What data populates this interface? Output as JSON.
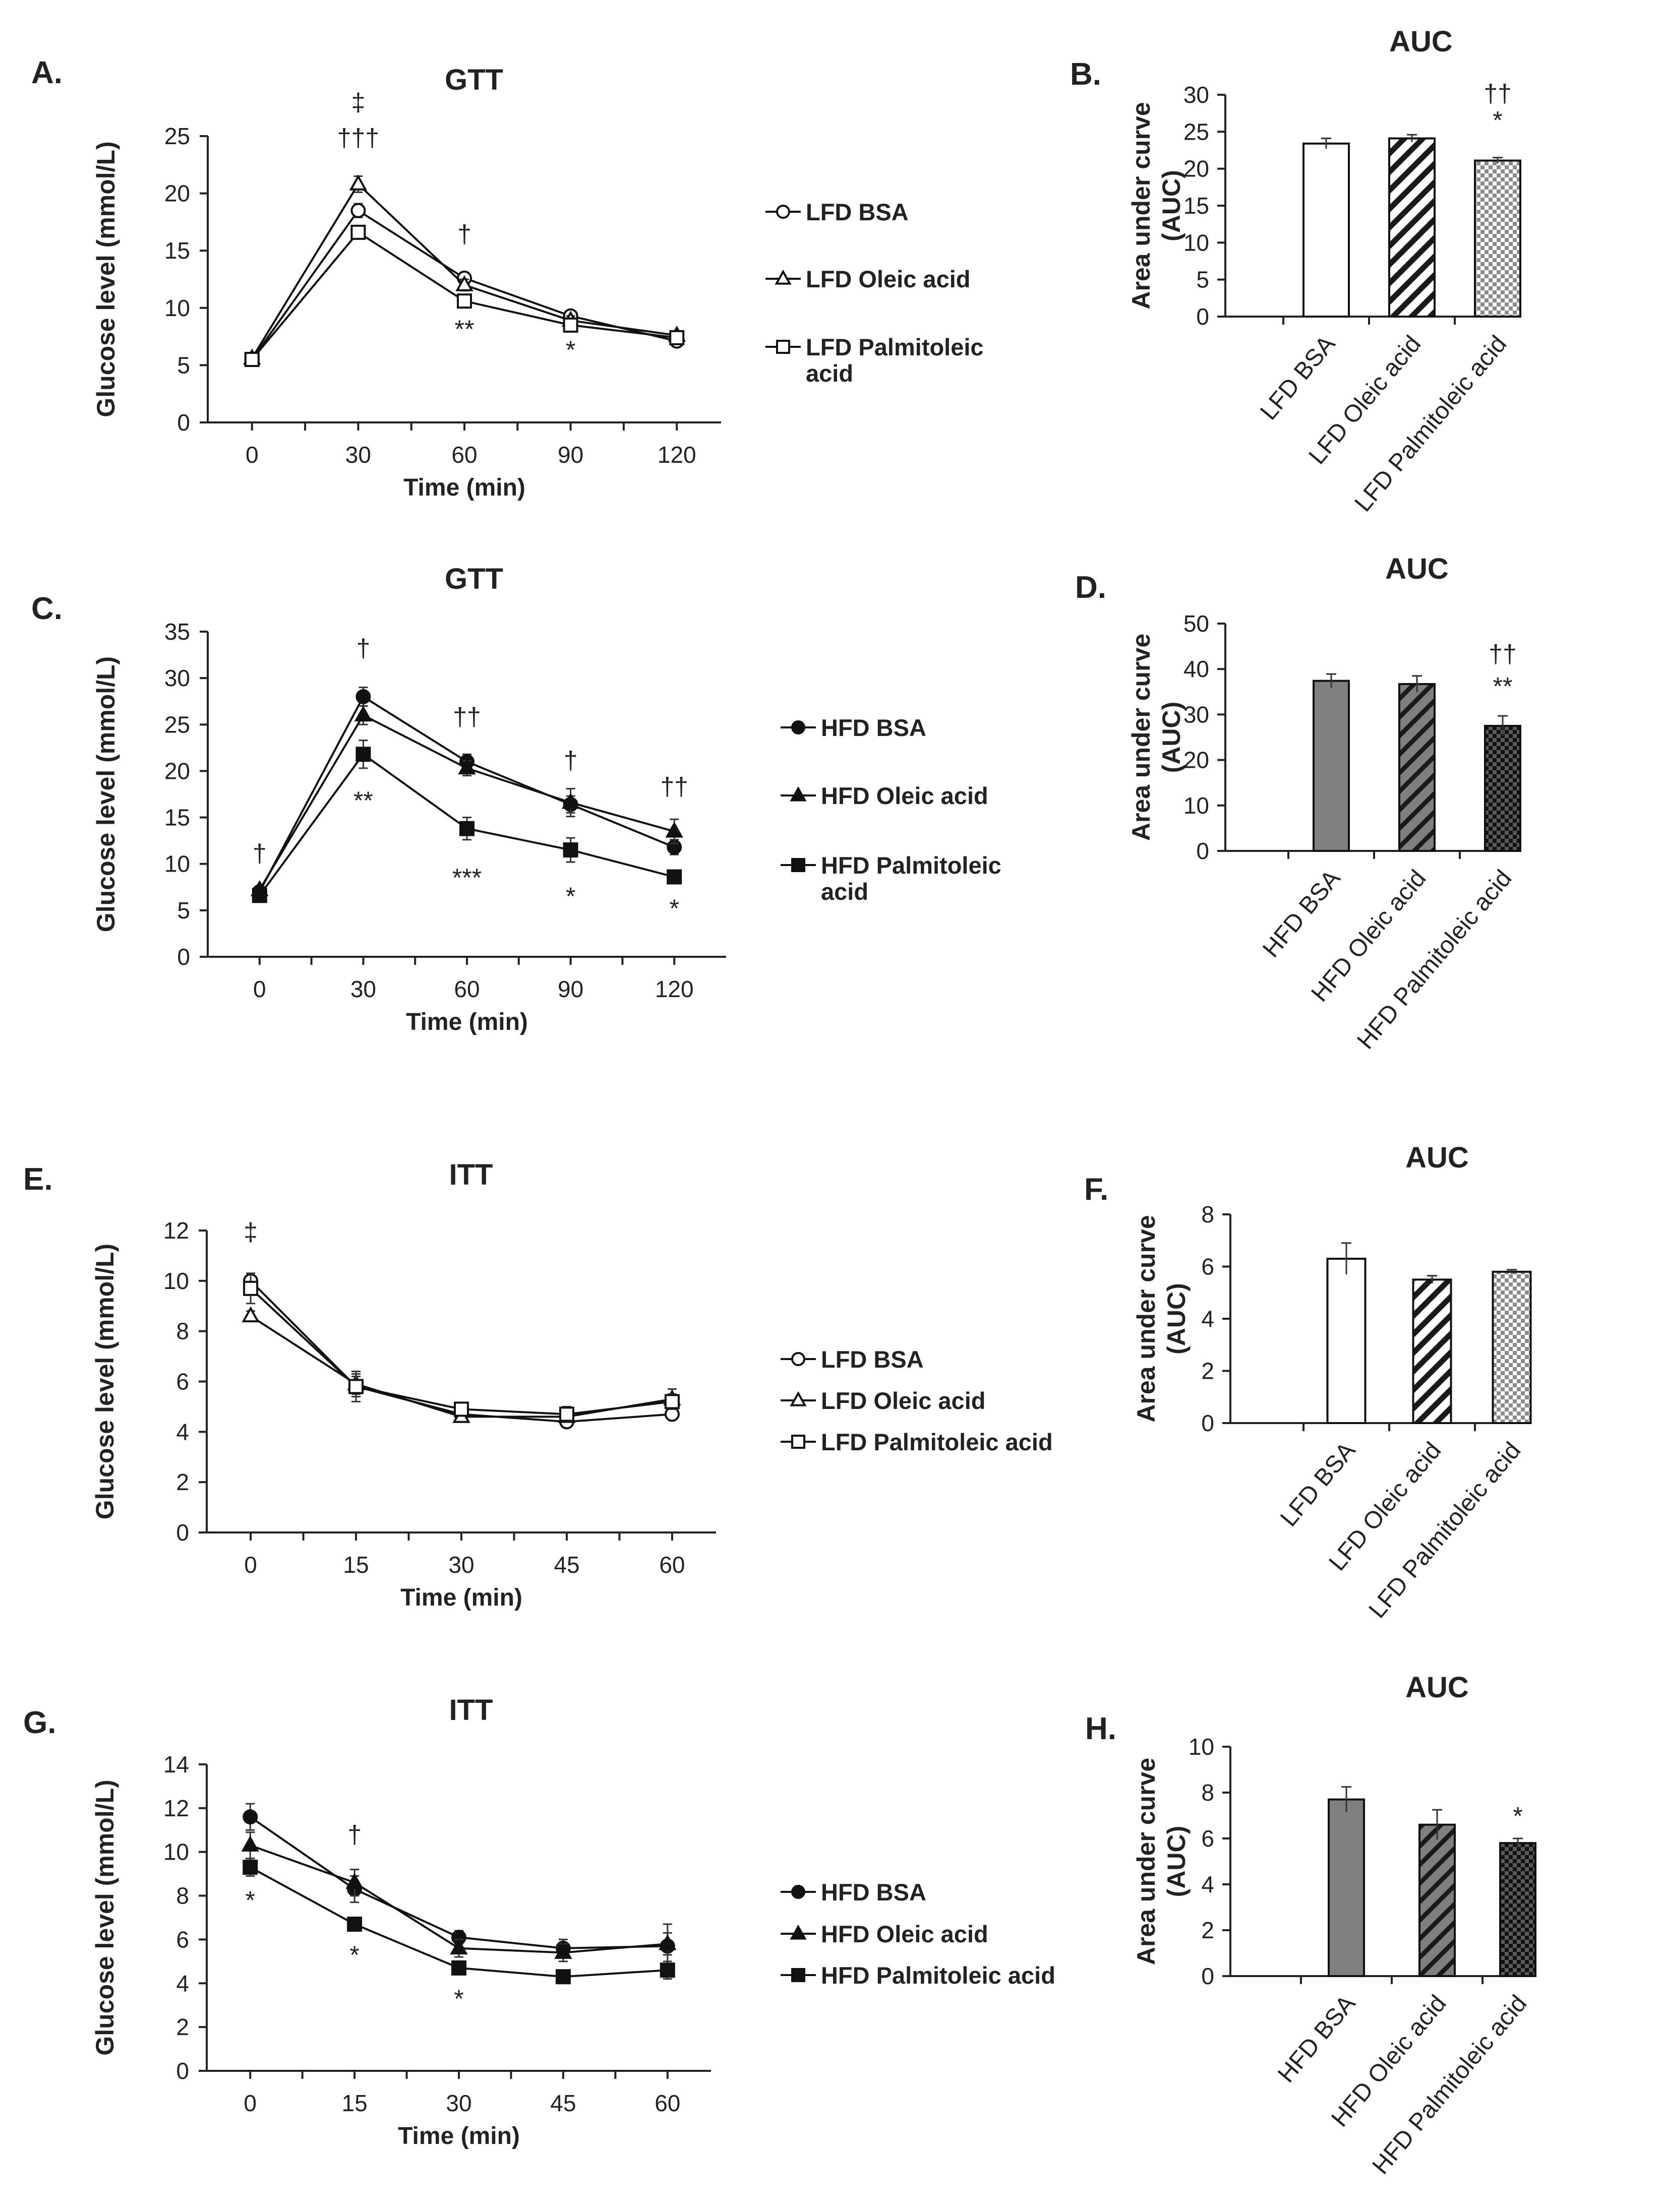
{
  "figure_caption_note": "",
  "chart_data": [
    {
      "panel": "A.",
      "type": "line",
      "title": "GTT",
      "xlabel": "Time (min)",
      "ylabel": "Glucose level (mmol/L)",
      "x": [
        0,
        30,
        60,
        90,
        120
      ],
      "xticks": [
        "0",
        "30",
        "60",
        "90",
        "120"
      ],
      "xlim": [
        -12.5,
        132.5
      ],
      "ylim": [
        0,
        25
      ],
      "yticks": [
        0,
        5,
        10,
        15,
        20,
        25
      ],
      "series": [
        {
          "name": "LFD BSA",
          "marker": "circle-open",
          "values": [
            5.5,
            18.5,
            12.6,
            9.3,
            7.1
          ],
          "errors": [
            0.2,
            0.6,
            0.5,
            0.4,
            0.3
          ]
        },
        {
          "name": "LFD Oleic acid",
          "marker": "triangle-open",
          "values": [
            5.6,
            20.8,
            12.0,
            8.9,
            7.6
          ],
          "errors": [
            0.2,
            0.7,
            0.5,
            0.4,
            0.3
          ]
        },
        {
          "name": "LFD Palmitoleic acid",
          "marker": "square-open",
          "values": [
            5.5,
            16.6,
            10.6,
            8.5,
            7.4
          ],
          "errors": [
            0.2,
            0.5,
            0.4,
            0.3,
            0.3
          ]
        }
      ],
      "legend": [
        "LFD BSA",
        "LFD Oleic acid",
        "LFD Palmitoleic\nacid"
      ],
      "annotations": [
        {
          "text": "‡",
          "x": 30,
          "y": 27.2
        },
        {
          "text": "†††",
          "x": 30,
          "y": 24.1
        },
        {
          "text": "†",
          "x": 60,
          "y": 15.7
        },
        {
          "text": "**",
          "x": 60,
          "y": 7.4
        },
        {
          "text": "*",
          "x": 90,
          "y": 5.6
        }
      ]
    },
    {
      "panel": "B.",
      "type": "bar",
      "title": "AUC",
      "ylabel": "Area under curve\n(AUC)",
      "categories": [
        "LFD BSA",
        "LFD Oleic acid",
        "LFD Palmitoleic acid"
      ],
      "values": [
        23.4,
        24.1,
        21.1
      ],
      "errors": [
        0.7,
        0.5,
        0.4
      ],
      "patterns": [
        "white",
        "hatch-white",
        "check-white"
      ],
      "ylim": [
        0,
        30
      ],
      "yticks": [
        0,
        5,
        10,
        15,
        20,
        25,
        30
      ],
      "annotations": [
        {
          "text": "††",
          "bar": 2,
          "y": 29.0
        },
        {
          "text": "*",
          "bar": 2,
          "y": 25.4
        }
      ]
    },
    {
      "panel": "C.",
      "type": "line",
      "title": "GTT",
      "xlabel": "Time (min)",
      "ylabel": "Glucose level (mmol/L)",
      "x": [
        0,
        30,
        60,
        90,
        120
      ],
      "xticks": [
        "0",
        "30",
        "60",
        "90",
        "120"
      ],
      "xlim": [
        -15,
        135
      ],
      "ylim": [
        0,
        35
      ],
      "yticks": [
        0,
        5,
        10,
        15,
        20,
        25,
        30,
        35
      ],
      "series": [
        {
          "name": "HFD BSA",
          "marker": "circle-filled",
          "values": [
            7.0,
            28.0,
            21.0,
            16.4,
            11.8
          ],
          "errors": [
            0.3,
            1.0,
            0.8,
            0.9,
            0.8
          ]
        },
        {
          "name": "HFD Oleic acid",
          "marker": "triangle-filled",
          "values": [
            7.2,
            26.0,
            20.3,
            16.6,
            13.5
          ],
          "errors": [
            0.3,
            1.0,
            0.8,
            1.5,
            1.3
          ]
        },
        {
          "name": "HFD Palmitoleic acid",
          "marker": "square-filled",
          "values": [
            6.6,
            21.8,
            13.8,
            11.5,
            8.6
          ],
          "errors": [
            0.4,
            1.5,
            1.2,
            1.3,
            0.6
          ]
        }
      ],
      "legend": [
        "HFD BSA",
        "HFD Oleic acid",
        "HFD Palmitoleic\nacid"
      ],
      "annotations": [
        {
          "text": "†",
          "x": 0,
          "y": 10.2
        },
        {
          "text": "†",
          "x": 30,
          "y": 32.3
        },
        {
          "text": "**",
          "x": 30,
          "y": 15.9
        },
        {
          "text": "††",
          "x": 60,
          "y": 24.9
        },
        {
          "text": "***",
          "x": 60,
          "y": 7.6
        },
        {
          "text": "†",
          "x": 90,
          "y": 20.2
        },
        {
          "text": "*",
          "x": 90,
          "y": 5.6
        },
        {
          "text": "††",
          "x": 120,
          "y": 17.4
        },
        {
          "text": "*",
          "x": 120,
          "y": 4.3
        }
      ]
    },
    {
      "panel": "D.",
      "type": "bar",
      "title": "AUC",
      "ylabel": "Area under curve\n(AUC)",
      "categories": [
        "HFD BSA",
        "HFD Oleic acid",
        "HFD Palmitoleic acid"
      ],
      "values": [
        37.4,
        36.7,
        27.5
      ],
      "errors": [
        1.5,
        1.8,
        2.2
      ],
      "patterns": [
        "gray",
        "hatch-gray",
        "check-gray"
      ],
      "ylim": [
        0,
        50
      ],
      "yticks": [
        0,
        10,
        20,
        30,
        40,
        50
      ],
      "annotations": [
        {
          "text": "††",
          "bar": 2,
          "y": 41.4
        },
        {
          "text": "**",
          "bar": 2,
          "y": 34.3
        }
      ]
    },
    {
      "panel": "E.",
      "type": "line",
      "title": "ITT",
      "xlabel": "Time (min)",
      "ylabel": "Glucose level (mmol/L)",
      "x": [
        0,
        15,
        30,
        45,
        60
      ],
      "xticks": [
        "0",
        "15",
        "30",
        "45",
        "60"
      ],
      "xlim": [
        -6.25,
        66.25
      ],
      "ylim": [
        0,
        12
      ],
      "yticks": [
        0,
        2,
        4,
        6,
        8,
        10,
        12
      ],
      "series": [
        {
          "name": "LFD BSA",
          "marker": "circle-open",
          "values": [
            10.0,
            5.8,
            4.7,
            4.4,
            4.7
          ],
          "errors": [
            0.3,
            0.6,
            0.2,
            0.2,
            0.2
          ]
        },
        {
          "name": "LFD Oleic acid",
          "marker": "triangle-open",
          "values": [
            8.6,
            5.9,
            4.6,
            4.6,
            5.3
          ],
          "errors": [
            0.2,
            0.4,
            0.2,
            0.2,
            0.4
          ]
        },
        {
          "name": "LFD Palmitoleic acid",
          "marker": "square-open",
          "values": [
            9.7,
            5.8,
            4.9,
            4.7,
            5.2
          ],
          "errors": [
            0.6,
            0.4,
            0.2,
            0.3,
            0.3
          ]
        }
      ],
      "legend": [
        "LFD BSA",
        "LFD Oleic acid",
        "LFD Palmitoleic acid"
      ],
      "annotations": [
        {
          "text": "‡",
          "x": 0,
          "y": 11.6
        }
      ]
    },
    {
      "panel": "F.",
      "type": "bar",
      "title": "AUC",
      "ylabel": "Area under curve\n(AUC)",
      "categories": [
        "LFD BSA",
        "LFD Oleic acid",
        "LFD Palmitoleic acid"
      ],
      "values": [
        6.3,
        5.5,
        5.8
      ],
      "errors": [
        0.6,
        0.15,
        0.08
      ],
      "patterns": [
        "white",
        "hatch-white",
        "check-white"
      ],
      "ylim": [
        0,
        8
      ],
      "yticks": [
        0,
        2,
        4,
        6,
        8
      ],
      "annotations": []
    },
    {
      "panel": "G.",
      "type": "line",
      "title": "ITT",
      "xlabel": "Time (min)",
      "ylabel": "Glucose level (mmol/L)",
      "x": [
        0,
        15,
        30,
        45,
        60
      ],
      "xticks": [
        "0",
        "15",
        "30",
        "45",
        "60"
      ],
      "xlim": [
        -6.25,
        66.25
      ],
      "ylim": [
        0,
        14
      ],
      "yticks": [
        0,
        2,
        4,
        6,
        8,
        10,
        12,
        14
      ],
      "series": [
        {
          "name": "HFD BSA",
          "marker": "circle-filled",
          "values": [
            11.6,
            8.3,
            6.1,
            5.6,
            5.7
          ],
          "errors": [
            0.6,
            0.6,
            0.3,
            0.4,
            1.0
          ]
        },
        {
          "name": "HFD Oleic acid",
          "marker": "triangle-filled",
          "values": [
            10.3,
            8.6,
            5.6,
            5.4,
            5.8
          ],
          "errors": [
            0.6,
            0.6,
            0.4,
            0.4,
            0.5
          ]
        },
        {
          "name": "HFD Palmitoleic acid",
          "marker": "square-filled",
          "values": [
            9.3,
            6.7,
            4.7,
            4.3,
            4.6
          ],
          "errors": [
            0.4,
            0.2,
            0.2,
            0.2,
            0.4
          ]
        }
      ],
      "legend": [
        "HFD BSA",
        "HFD Oleic acid",
        "HFD Palmitoleic acid"
      ],
      "annotations": [
        {
          "text": "†",
          "x": 15,
          "y": 10.4
        },
        {
          "text": "*",
          "x": 0,
          "y": 7.4
        },
        {
          "text": "*",
          "x": 15,
          "y": 4.9
        },
        {
          "text": "*",
          "x": 30,
          "y": 2.9
        }
      ]
    },
    {
      "panel": "H.",
      "type": "bar",
      "title": "AUC",
      "ylabel": "Area under curve\n(AUC)",
      "categories": [
        "HFD BSA",
        "HFD Oleic acid",
        "HFD Palmitoleic acid"
      ],
      "values": [
        7.7,
        6.6,
        5.8
      ],
      "errors": [
        0.55,
        0.65,
        0.2
      ],
      "patterns": [
        "gray",
        "hatch-gray",
        "check-gray"
      ],
      "ylim": [
        0,
        10
      ],
      "yticks": [
        0,
        2,
        4,
        6,
        8,
        10
      ],
      "annotations": [
        {
          "text": "*",
          "bar": 2,
          "y": 6.6
        }
      ]
    }
  ]
}
